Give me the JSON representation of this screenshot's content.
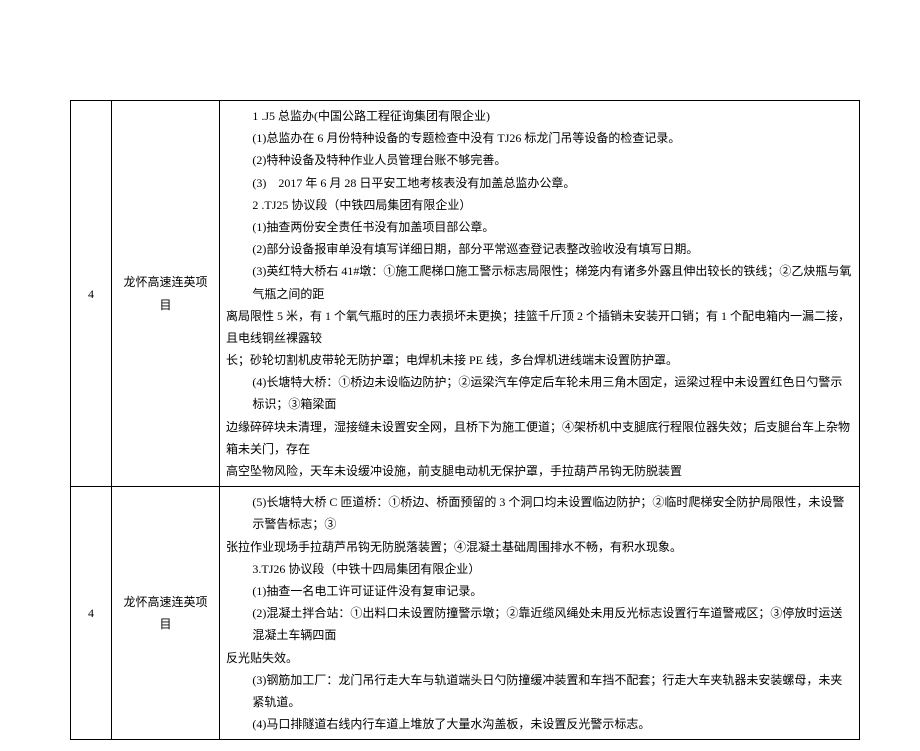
{
  "table": {
    "rows": [
      {
        "idx": "4",
        "project": "龙怀高速连英项目",
        "lines": [
          {
            "cls": "indent1",
            "text": "1 .J5 总监办(中国公路工程征询集团有限企业)"
          },
          {
            "cls": "indent2",
            "text": "(1)总监办在 6 月份特种设备的专题检查中没有 TJ26 标龙门吊等设备的检查记录。"
          },
          {
            "cls": "indent2",
            "text": "(2)特种设备及特种作业人员管理台账不够完善。"
          },
          {
            "cls": "indent2",
            "text": "(3)　2017 年 6 月 28 日平安工地考核表没有加盖总监办公章。"
          },
          {
            "cls": "indent1",
            "text": "2 .TJ25 协议段（中铁四局集团有限企业）"
          },
          {
            "cls": "indent2",
            "text": "(1)抽查两份安全责任书没有加盖项目部公章。"
          },
          {
            "cls": "indent2",
            "text": "(2)部分设备报审单没有填写详细日期，部分平常巡查登记表整改验收没有填写日期。"
          },
          {
            "cls": "indent2",
            "text": "(3)英红特大桥右 41#墩：①施工爬梯口施工警示标志局限性；梯笼内有诸多外露且伸出较长的铁线；②乙炔瓶与氧气瓶之间的距"
          },
          {
            "cls": "body-line",
            "text": "离局限性 5 米，有 1 个氧气瓶时的压力表损坏未更换；挂篮千斤顶 2 个插销未安装开口销；有 1 个配电箱内一漏二接，且电线铜丝裸露较"
          },
          {
            "cls": "body-line",
            "text": "长；砂轮切割机皮带轮无防护罩；电焊机未接 PE 线，多台焊机进线端末设置防护罩。"
          },
          {
            "cls": "indent2",
            "text": "(4)长塘特大桥：①桥边未设临边防护；②运梁汽车停定后车轮未用三角木固定，运梁过程中未设置红色日勺警示标识；③箱梁面"
          },
          {
            "cls": "body-line",
            "text": "边缘碎碎块未清理，湿接缝未设置安全网，且桥下为施工便道；④架桥机中支腿底行程限位器失效；后支腿台车上杂物箱未关门，存在"
          },
          {
            "cls": "body-line",
            "text": "高空坠物风险，天车未设缓冲设施，前支腿电动机无保护罩，手拉葫芦吊钩无防脱装置"
          }
        ]
      },
      {
        "idx": "4",
        "project": "龙怀高速连英项目",
        "lines": [
          {
            "cls": "indent2",
            "text": "(5)长塘特大桥 C 匝道桥：①桥边、桥面预留的 3 个洞口均未设置临边防护；②临时爬梯安全防护局限性，未设警示警告标志；③"
          },
          {
            "cls": "body-line",
            "text": "张拉作业现场手拉葫芦吊钩无防脱落装置；④混凝土基础周围排水不畅，有积水现象。"
          },
          {
            "cls": "indent1",
            "text": "3.TJ26 协议段（中铁十四局集团有限企业）"
          },
          {
            "cls": "indent2",
            "text": "(1)抽查一名电工许可证证件没有复审记录。"
          },
          {
            "cls": "indent2",
            "text": "(2)混凝土拌合站：①出料口未设置防撞警示墩；②靠近缆风绳处未用反光标志设置行车道警戒区；③停放时运送混凝土车辆四面"
          },
          {
            "cls": "body-line",
            "text": "反光贴失效。"
          },
          {
            "cls": "indent2",
            "text": "(3)钢筋加工厂：龙门吊行走大车与轨道端头日勺防撞缓冲装置和车挡不配套；行走大车夹轨器未安装螺母，未夹紧轨道。"
          },
          {
            "cls": "indent2",
            "text": "(4)马口排隧道右线内行车道上堆放了大量水沟盖板，未设置反光警示标志。"
          }
        ]
      }
    ]
  }
}
